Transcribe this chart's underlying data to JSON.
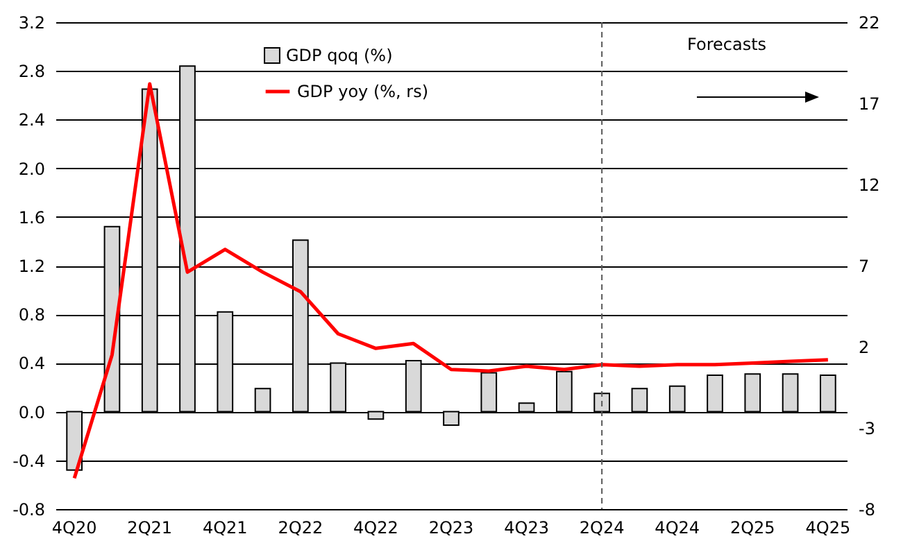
{
  "chart_data": {
    "type": "bar",
    "categories": [
      "4Q20",
      null,
      "2Q21",
      null,
      "4Q21",
      null,
      "2Q22",
      null,
      "4Q22",
      null,
      "2Q23",
      null,
      "4Q23",
      null,
      "2Q24",
      null,
      "4Q24",
      null,
      "2Q25",
      null,
      "4Q25"
    ],
    "series": [
      {
        "name": "GDP qoq (%)",
        "color": "#d9d9d9",
        "values": [
          -0.48,
          1.52,
          2.65,
          2.84,
          0.82,
          0.19,
          1.41,
          0.4,
          -0.06,
          0.42,
          -0.11,
          0.32,
          0.07,
          0.33,
          0.15,
          0.19,
          0.21,
          0.3,
          0.31,
          0.31,
          0.3
        ]
      },
      {
        "name": "GDP yoy (%, rs)",
        "type": "line",
        "axis": "y2",
        "color": "#ff0000",
        "values": [
          -6.1,
          1.5,
          18.2,
          6.6,
          8.0,
          6.6,
          5.4,
          2.8,
          1.9,
          2.2,
          0.6,
          0.5,
          0.8,
          0.6,
          0.9,
          0.8,
          0.9,
          0.9,
          1.0,
          1.1,
          1.2
        ]
      }
    ],
    "ylim": [
      -0.8,
      3.2
    ],
    "yticks": [
      -0.8,
      -0.4,
      {
        "value": 0,
        "label": "0.0"
      },
      0.4,
      0.8,
      1.2,
      1.6,
      {
        "value": 2,
        "label": "2.0"
      },
      2.4,
      2.8,
      3.2
    ],
    "y2lim": [
      -8,
      22
    ],
    "y2ticks": [
      -8,
      -3,
      2,
      7,
      12,
      17,
      22
    ],
    "ref_lines": [
      {
        "axis": "x",
        "value": "2Q24",
        "color": "#595959",
        "line_style": "dashed"
      }
    ],
    "annotations": [
      "Forecasts"
    ],
    "grid": "y",
    "legend": "top"
  }
}
